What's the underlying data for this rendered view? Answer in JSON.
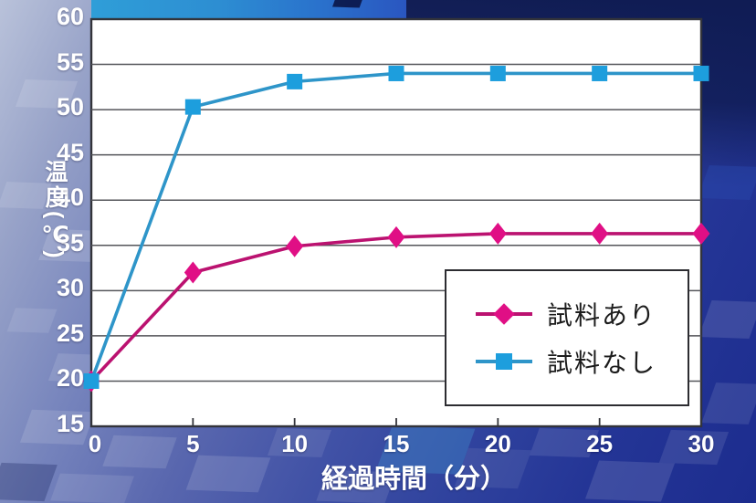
{
  "chart_data": {
    "type": "line",
    "title": "",
    "xlabel": "経過時間（分）",
    "ylabel": "温度(℃)",
    "x": [
      0,
      5,
      10,
      15,
      20,
      25,
      30
    ],
    "xlim": [
      0,
      30
    ],
    "ylim": [
      15,
      60
    ],
    "xtick_step": 5,
    "ytick_step": 5,
    "grid": "horizontal-only",
    "legend_position": "inside-lower-right",
    "frame_color": "#33343a",
    "grid_color": "#54555a",
    "plot_bg": "#ffffff",
    "series": [
      {
        "name": "試料あり",
        "marker": "diamond",
        "line_color": "#bb1270",
        "marker_color": "#e00f85",
        "values": [
          20,
          32,
          34.9,
          35.9,
          36.3,
          36.3,
          36.3
        ]
      },
      {
        "name": "試料なし",
        "marker": "square",
        "line_color": "#2e95c9",
        "marker_color": "#1d9edd",
        "values": [
          20,
          50.3,
          53.1,
          54,
          54,
          54,
          54
        ]
      }
    ]
  },
  "axis": {
    "y_ticks": [
      60,
      55,
      50,
      45,
      40,
      35,
      30,
      25,
      20,
      15
    ],
    "x_ticks": [
      0,
      5,
      10,
      15,
      20,
      25,
      30
    ]
  },
  "background": {
    "base_light": "#b9c2da",
    "base_dark": "#1c2c8e",
    "top_band_accent": "#2f9ed8",
    "corner_navy": "#0e1a50"
  }
}
